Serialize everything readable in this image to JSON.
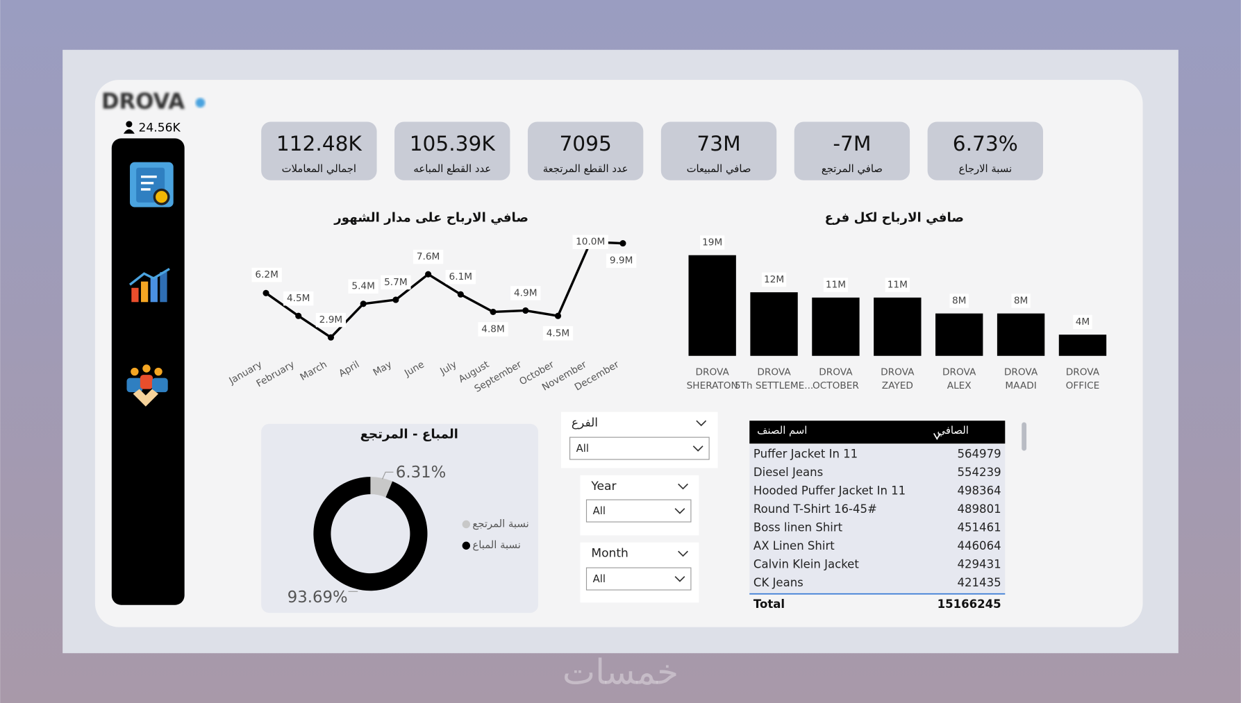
{
  "logo": "DROVA",
  "user_count": "24.56K",
  "kpis": [
    {
      "value": "112.48K",
      "label": "اجمالي المعاملات"
    },
    {
      "value": "105.39K",
      "label": "عدد القطع المباعه"
    },
    {
      "value": "7095",
      "label": "عدد القطع المرتجعة"
    },
    {
      "value": "73M",
      "label": "صافي المبيعات"
    },
    {
      "value": "-7M",
      "label": "صافي المرتجع"
    },
    {
      "value": "6.73%",
      "label": "نسبة الارجاع"
    }
  ],
  "chart_data": [
    {
      "type": "line",
      "title": "صافي الارباح على مدار الشهور",
      "categories": [
        "January",
        "February",
        "March",
        "April",
        "May",
        "June",
        "July",
        "August",
        "September",
        "October",
        "November",
        "December"
      ],
      "values": [
        6.2,
        4.5,
        2.9,
        5.4,
        5.7,
        7.6,
        6.1,
        4.8,
        4.9,
        4.5,
        10.0,
        9.9
      ],
      "value_labels": [
        "6.2M",
        "4.5M",
        "2.9M",
        "5.4M",
        "5.7M",
        "7.6M",
        "6.1M",
        "4.8M",
        "4.9M",
        "4.5M",
        "10.0M",
        "9.9M"
      ],
      "color": "#000000"
    },
    {
      "type": "bar",
      "title": "صافي الارباح لكل فرع",
      "categories": [
        "DROVA SHERATON",
        "DROVA 5Th SETTLEME...",
        "DROVA OCTOBER",
        "DROVA ZAYED",
        "DROVA ALEX",
        "DROVA MAADI",
        "DROVA OFFICE"
      ],
      "values": [
        19,
        12,
        11,
        11,
        8,
        8,
        4
      ],
      "value_labels": [
        "19M",
        "12M",
        "11M",
        "11M",
        "8M",
        "8M",
        "4M"
      ],
      "color": "#000000"
    },
    {
      "type": "pie",
      "title": "المباع - المرتجع",
      "labels": [
        "نسبة المرتجع",
        "نسبة المباع"
      ],
      "values": [
        6.31,
        93.69
      ],
      "value_labels": [
        "6.31%",
        "93.69%"
      ],
      "colors": [
        "#c8c8c8",
        "#000000"
      ]
    }
  ],
  "slicers": [
    {
      "label": "الفرع",
      "value": "All"
    },
    {
      "label": "Year",
      "value": "All"
    },
    {
      "label": "Month",
      "value": "All"
    }
  ],
  "table": {
    "columns": [
      "اسم الصنف",
      "الصافي"
    ],
    "rows": [
      [
        "Puffer Jacket In 11",
        564979
      ],
      [
        "Diesel Jeans",
        554239
      ],
      [
        "Hooded Puffer Jacket In 11",
        498364
      ],
      [
        "Round T-Shirt  16-45#",
        489801
      ],
      [
        "Boss linen Shirt",
        451461
      ],
      [
        "AX Linen Shirt",
        446064
      ],
      [
        "Calvin Klein Jacket",
        429431
      ],
      [
        "CK Jeans",
        421435
      ]
    ],
    "total": [
      "Total",
      15166245
    ]
  },
  "watermark": "خمسات"
}
